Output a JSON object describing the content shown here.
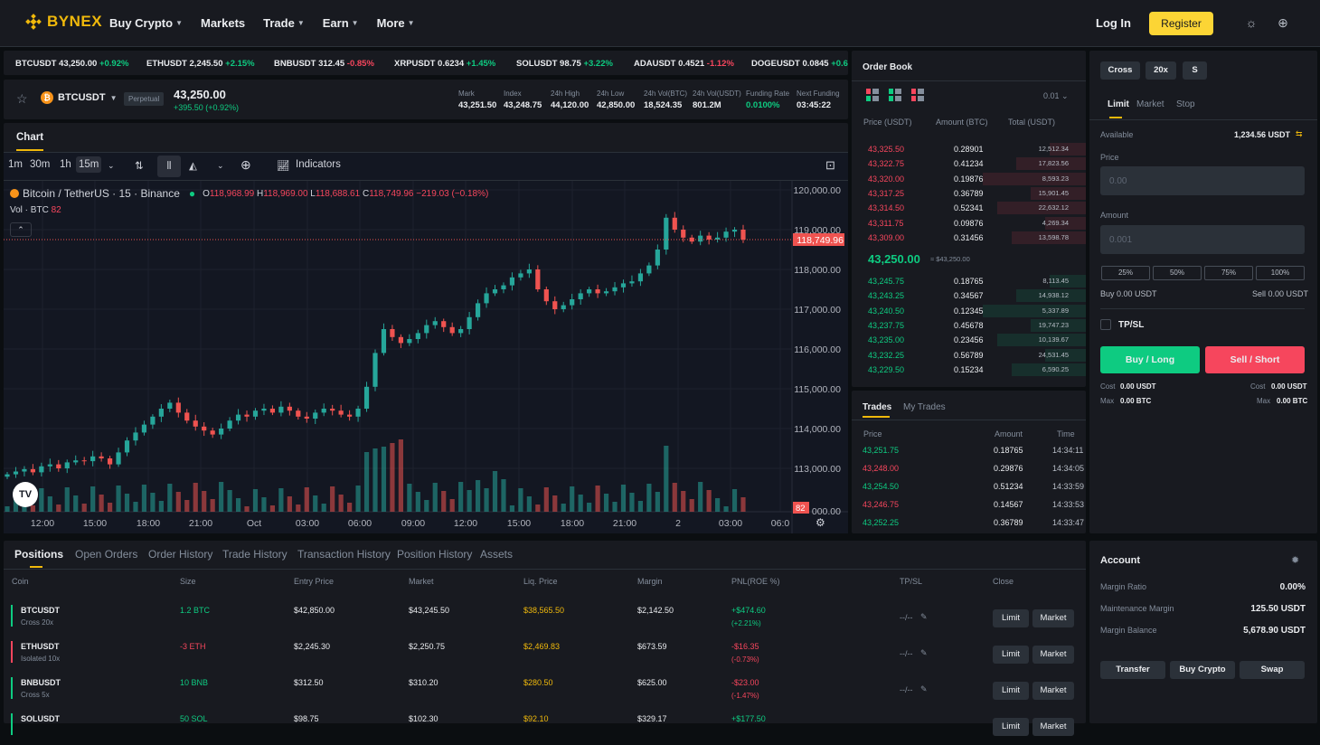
{
  "nav": {
    "brand": "BYNEX",
    "items": [
      "Buy Crypto",
      "Markets",
      "Trade",
      "Earn",
      "More"
    ],
    "login": "Log In",
    "register": "Register"
  },
  "ticker": [
    {
      "sym": "BTCUSDT",
      "price": "43,250.00",
      "chg": "+0.92%",
      "dir": "up"
    },
    {
      "sym": "ETHUSDT",
      "price": "2,245.50",
      "chg": "+2.15%",
      "dir": "up"
    },
    {
      "sym": "BNBUSDT",
      "price": "312.45",
      "chg": "-0.85%",
      "dir": "dn"
    },
    {
      "sym": "XRPUSDT",
      "price": "0.6234",
      "chg": "+1.45%",
      "dir": "up"
    },
    {
      "sym": "SOLUSDT",
      "price": "98.75",
      "chg": "+3.22%",
      "dir": "up"
    },
    {
      "sym": "ADAUSDT",
      "price": "0.4521",
      "chg": "-1.12%",
      "dir": "dn"
    },
    {
      "sym": "DOGEUSDT",
      "price": "0.0845",
      "chg": "+0.6",
      "dir": "up"
    }
  ],
  "symbol": {
    "name": "BTCUSDT",
    "type": "Perpetual",
    "price": "43,250.00",
    "change": "+395.50 (+0.92%)",
    "stats": [
      {
        "l": "Mark",
        "v": "43,251.50",
        "c": ""
      },
      {
        "l": "Index",
        "v": "43,248.75",
        "c": ""
      },
      {
        "l": "24h High",
        "v": "44,120.00",
        "c": ""
      },
      {
        "l": "24h Low",
        "v": "42,850.00",
        "c": ""
      },
      {
        "l": "24h Vol(BTC)",
        "v": "18,524.35",
        "c": ""
      },
      {
        "l": "24h Vol(USDT)",
        "v": "801.2M",
        "c": ""
      },
      {
        "l": "Funding Rate",
        "v": "0.0100%",
        "c": "up"
      },
      {
        "l": "Next Funding",
        "v": "03:45:22",
        "c": ""
      }
    ]
  },
  "chart": {
    "tab": "Chart",
    "intervals": [
      "1m",
      "30m",
      "1h",
      "15m"
    ],
    "indicators": "Indicators",
    "legend_title": "Bitcoin / TetherUS · 15 · Binance",
    "ohlc": {
      "o": "118,968.99",
      "h": "118,969.00",
      "l": "118,688.61",
      "c": "118,749.96",
      "chg": "−219.03 (−0.18%)"
    },
    "vol_label": "Vol · BTC",
    "vol_value": "82",
    "last_price": "118,749.96",
    "vol_tag": "82",
    "y_labels": [
      "120,000.00",
      "119,000.00",
      "118,000.00",
      "117,000.00",
      "116,000.00",
      "115,000.00",
      "114,000.00",
      "113,000.00",
      "000.00"
    ],
    "x_labels": [
      "12:00",
      "15:00",
      "18:00",
      "21:00",
      "Oct",
      "03:00",
      "06:00",
      "09:00",
      "12:00",
      "15:00",
      "18:00",
      "21:00",
      "2",
      "03:00",
      "06:0"
    ]
  },
  "chart_data": {
    "type": "candlestick",
    "series_close": [
      112850,
      112920,
      112980,
      112900,
      113050,
      113100,
      113000,
      113150,
      113200,
      113180,
      113300,
      113250,
      113100,
      113400,
      113700,
      113900,
      114100,
      114300,
      114500,
      114650,
      114400,
      114200,
      114050,
      113950,
      113850,
      114000,
      114200,
      114350,
      114300,
      114450,
      114500,
      114400,
      114550,
      114450,
      114300,
      114250,
      114400,
      114500,
      114450,
      114350,
      114300,
      114500,
      115050,
      115900,
      116500,
      116300,
      116150,
      116250,
      116400,
      116600,
      116700,
      116550,
      116400,
      116500,
      116800,
      117150,
      117400,
      117500,
      117600,
      117800,
      117900,
      118000,
      117500,
      117200,
      117000,
      117100,
      117250,
      117400,
      117500,
      117400,
      117450,
      117550,
      117650,
      117700,
      117900,
      118100,
      118500,
      119300,
      119000,
      118800,
      118700,
      118850,
      118750,
      118800,
      118950,
      119000,
      118750
    ],
    "ylim": [
      112500,
      120200
    ]
  },
  "orderbook": {
    "title": "Order Book",
    "precision": "0.01",
    "cols": [
      "Price (USDT)",
      "Amount (BTC)",
      "Total (USDT)"
    ],
    "asks": [
      [
        "43,325.50",
        "0.28901",
        "12,512.34"
      ],
      [
        "43,322.75",
        "0.41234",
        "17,823.56"
      ],
      [
        "43,320.00",
        "0.19876",
        "8,593.23"
      ],
      [
        "43,317.25",
        "0.36789",
        "15,901.45"
      ],
      [
        "43,314.50",
        "0.52341",
        "22,632.12"
      ],
      [
        "43,311.75",
        "0.09876",
        "4,269.34"
      ],
      [
        "43,309.00",
        "0.31456",
        "13,598.78"
      ]
    ],
    "mid": "43,250.00",
    "mid_sub": "≈ $43,250.00",
    "bids": [
      [
        "43,245.75",
        "0.18765",
        "8,113.45"
      ],
      [
        "43,243.25",
        "0.34567",
        "14,938.12"
      ],
      [
        "43,240.50",
        "0.12345",
        "5,337.89"
      ],
      [
        "43,237.75",
        "0.45678",
        "19,747.23"
      ],
      [
        "43,235.00",
        "0.23456",
        "10,139.67"
      ],
      [
        "43,232.25",
        "0.56789",
        "24,531.45"
      ],
      [
        "43,229.50",
        "0.15234",
        "6,590.25"
      ]
    ]
  },
  "trades": {
    "tabs": [
      "Trades",
      "My Trades"
    ],
    "cols": [
      "Price",
      "Amount",
      "Time"
    ],
    "rows": [
      [
        "43,251.75",
        "0.18765",
        "14:34:11",
        "up"
      ],
      [
        "43,248.00",
        "0.29876",
        "14:34:05",
        "dn"
      ],
      [
        "43,254.50",
        "0.51234",
        "14:33:59",
        "up"
      ],
      [
        "43,246.75",
        "0.14567",
        "14:33:53",
        "dn"
      ],
      [
        "43,252.25",
        "0.36789",
        "14:33:47",
        "up"
      ]
    ]
  },
  "order": {
    "margin_mode": "Cross",
    "leverage": "20x",
    "size_mode": "S",
    "types": [
      "Limit",
      "Market",
      "Stop"
    ],
    "available_label": "Available",
    "available": "1,234.56 USDT",
    "price_label": "Price",
    "price_ph": "0.00",
    "amount_label": "Amount",
    "amount_ph": "0.001",
    "pcts": [
      "25%",
      "50%",
      "75%",
      "100%"
    ],
    "buy_label": "Buy 0.00 USDT",
    "sell_label": "Sell 0.00 USDT",
    "tpsl": "TP/SL",
    "buy_btn": "Buy / Long",
    "sell_btn": "Sell / Short",
    "cost_l": "Cost",
    "cost_v": "0.00 USDT",
    "max_l": "Max",
    "max_v": "0.00 BTC"
  },
  "positions": {
    "tabs": [
      "Positions",
      "Open Orders",
      "Order History",
      "Trade History",
      "Transaction History",
      "Position History",
      "Assets"
    ],
    "cols": [
      "Coin",
      "Size",
      "Entry Price",
      "Market",
      "Liq. Price",
      "Margin",
      "PNL(ROE %)",
      "TP/SL",
      "Close"
    ],
    "rows": [
      {
        "coin": "BTCUSDT",
        "mode": "Cross 20x",
        "size": "1.2 BTC",
        "dir": "up",
        "entry": "$42,850.00",
        "market": "$43,245.50",
        "liq": "$38,565.50",
        "margin": "$2,142.50",
        "pnl": "+$474.60",
        "roe": "(+2.21%)",
        "tpsl": "--/--"
      },
      {
        "coin": "ETHUSDT",
        "mode": "Isolated 10x",
        "size": "-3 ETH",
        "dir": "dn",
        "entry": "$2,245.30",
        "market": "$2,250.75",
        "liq": "$2,469.83",
        "margin": "$673.59",
        "pnl": "-$16.35",
        "roe": "(-0.73%)",
        "tpsl": "--/--"
      },
      {
        "coin": "BNBUSDT",
        "mode": "Cross 5x",
        "size": "10 BNB",
        "dir": "up",
        "entry": "$312.50",
        "market": "$310.20",
        "liq": "$280.50",
        "margin": "$625.00",
        "pnl": "-$23.00",
        "roe": "(-1.47%)",
        "tpsl": "--/--"
      },
      {
        "coin": "SOLUSDT",
        "mode": "",
        "size": "50 SOL",
        "dir": "up",
        "entry": "$98.75",
        "market": "$102.30",
        "liq": "$92.10",
        "margin": "$329.17",
        "pnl": "+$177.50",
        "roe": "",
        "tpsl": ""
      }
    ],
    "limit": "Limit",
    "market_btn": "Market"
  },
  "account": {
    "title": "Account",
    "rows": [
      [
        "Margin Ratio",
        "0.00%"
      ],
      [
        "Maintenance Margin",
        "125.50 USDT"
      ],
      [
        "Margin Balance",
        "5,678.90 USDT"
      ]
    ],
    "buttons": [
      "Transfer",
      "Buy Crypto",
      "Swap"
    ]
  }
}
